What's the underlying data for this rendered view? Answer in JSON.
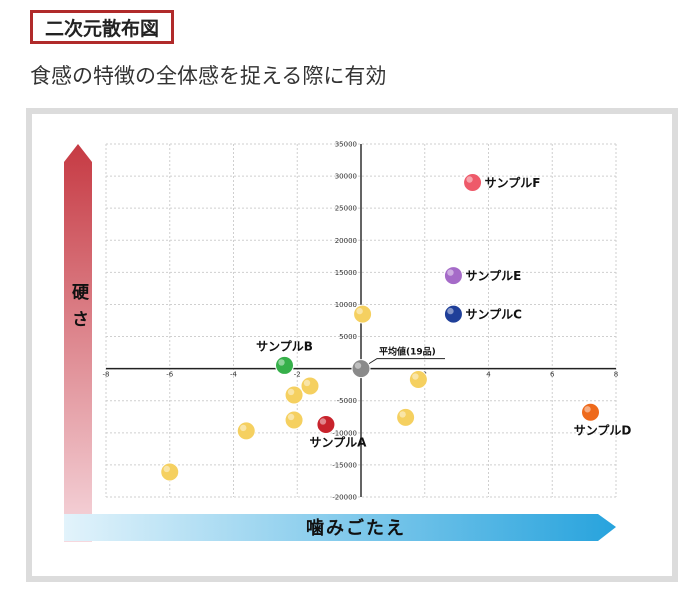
{
  "header": {
    "section_title": "二次元散布図",
    "subtitle": "食感の特徴の全体感を捉える際に有効"
  },
  "chart_data": {
    "type": "scatter",
    "xlim": [
      -8,
      8
    ],
    "ylim": [
      -20000,
      35000
    ],
    "x_ticks": [
      -8,
      -6,
      -4,
      -2,
      0,
      2,
      4,
      6,
      8
    ],
    "x_tick_labels": [
      "-8",
      "-6",
      "-4",
      "-2",
      "0",
      "2",
      "4",
      "6",
      "8"
    ],
    "y_ticks": [
      -20000,
      -15000,
      -10000,
      -5000,
      0,
      5000,
      10000,
      15000,
      20000,
      25000,
      30000,
      35000
    ],
    "y_tick_labels": [
      "-20000",
      "-15000",
      "-10000",
      "-5000",
      "0",
      "5000",
      "10000",
      "15000",
      "20000",
      "25000",
      "30000",
      "35000"
    ],
    "xlabel": "噛みごたえ",
    "ylabel": "硬さ",
    "grid": true,
    "colors": {
      "red": "#c8232c",
      "green": "#36b04a",
      "blue": "#1f3f99",
      "orange": "#ee6a1c",
      "purple": "#a56bc8",
      "pink": "#ee5a6a",
      "yellow": "#f5d060",
      "gray": "#8a8a8a"
    },
    "labeled_points": [
      {
        "name": "サンプルF",
        "x": 3.5,
        "y": 29000,
        "color": "pink",
        "label_side": "right"
      },
      {
        "name": "サンプルE",
        "x": 2.9,
        "y": 14500,
        "color": "purple",
        "label_side": "right"
      },
      {
        "name": "サンプルC",
        "x": 2.9,
        "y": 8500,
        "color": "blue",
        "label_side": "right"
      },
      {
        "name": "サンプルB",
        "x": -2.4,
        "y": 500,
        "color": "green",
        "label_side": "above"
      },
      {
        "name": "サンプルA",
        "x": -1.1,
        "y": -8700,
        "color": "red",
        "label_side": "below"
      },
      {
        "name": "サンプルD",
        "x": 7.2,
        "y": -6800,
        "color": "orange",
        "label_side": "below"
      },
      {
        "name": "平均値(19品)",
        "x": 0,
        "y": 0,
        "color": "gray",
        "label_side": "above-right"
      }
    ],
    "other_points": [
      {
        "x": 0.05,
        "y": 8500
      },
      {
        "x": 1.8,
        "y": -1700
      },
      {
        "x": 1.4,
        "y": -7600
      },
      {
        "x": -1.6,
        "y": -2700
      },
      {
        "x": -2.1,
        "y": -4100
      },
      {
        "x": -2.1,
        "y": -8000
      },
      {
        "x": -3.6,
        "y": -9700
      },
      {
        "x": -6.0,
        "y": -16100
      }
    ]
  }
}
